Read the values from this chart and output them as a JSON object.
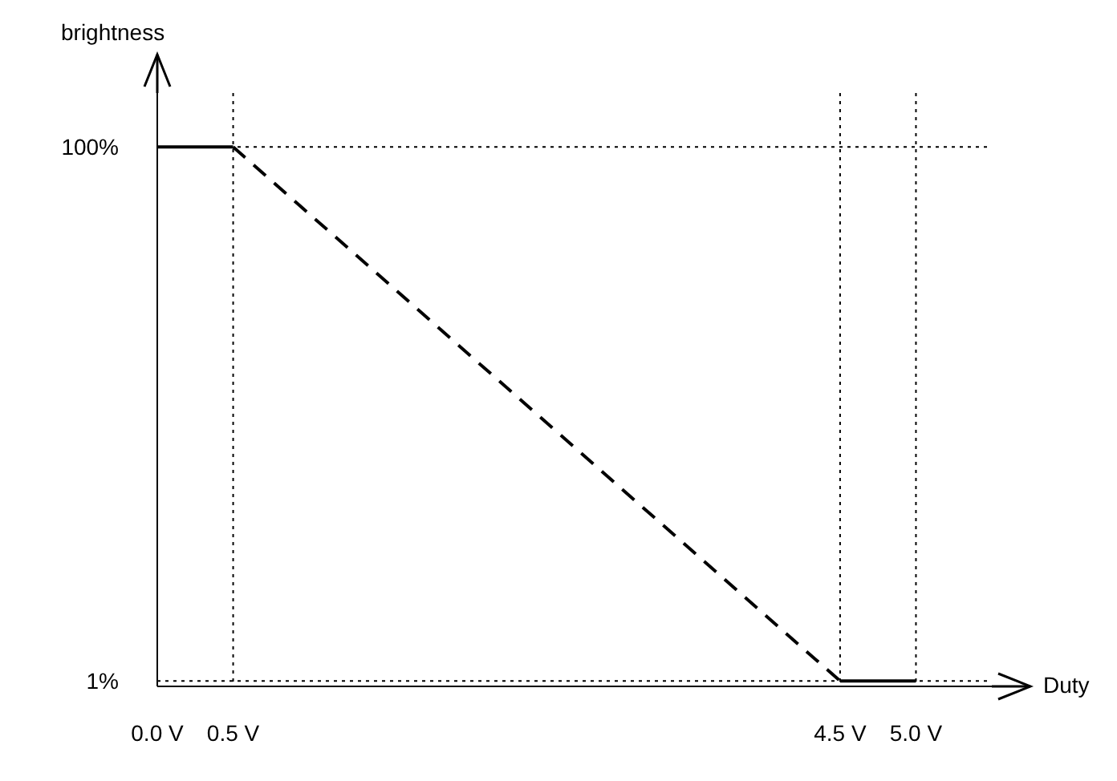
{
  "chart_data": {
    "type": "line",
    "xlabel": "Duty",
    "ylabel": "brightness",
    "xlim": [
      0,
      5.5
    ],
    "ylim": [
      0,
      110
    ],
    "xticks": [
      {
        "value": 0,
        "label": "0.0 V"
      },
      {
        "value": 0.5,
        "label": "0.5 V"
      },
      {
        "value": 4.5,
        "label": "4.5 V"
      },
      {
        "value": 5,
        "label": "5.0 V"
      }
    ],
    "yticks": [
      {
        "value": 1,
        "label": "1%"
      },
      {
        "value": 100,
        "label": "100%"
      }
    ],
    "grid": true,
    "marker": "none",
    "series": [
      {
        "color": "#000000",
        "x": [
          0,
          0.5
        ],
        "values": [
          100,
          100
        ],
        "line_style": "solid"
      },
      {
        "color": "#000000",
        "x": [
          0.5,
          4.5
        ],
        "values": [
          100,
          1
        ],
        "line_style": "dashed"
      },
      {
        "color": "#000000",
        "x": [
          4.5,
          5
        ],
        "values": [
          1,
          1
        ],
        "line_style": "solid"
      }
    ]
  }
}
